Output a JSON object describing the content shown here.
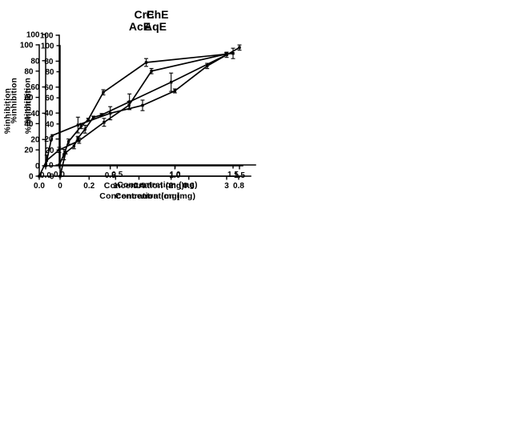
{
  "figure": {
    "background": "#ffffff",
    "ink_color": "#000000",
    "marker_shape": "filled-square",
    "error_bars": "vertical-with-caps"
  },
  "chart_data": [
    {
      "id": "cre",
      "type": "line",
      "title": "CrE",
      "xlabel": "Concentration (mg)",
      "ylabel": "%inhibition",
      "xlim": [
        0,
        1.52
      ],
      "ylim": [
        0,
        100
      ],
      "legend": "none",
      "grid": false,
      "xticks": {
        "values": [
          0,
          0.5,
          1.0,
          1.5
        ],
        "labels": [
          "0.0",
          "0.5",
          "1.0",
          "1.5"
        ]
      },
      "yticks": {
        "values": [
          0,
          20,
          40,
          60,
          80,
          100
        ],
        "labels": [
          "0",
          "20",
          "40",
          "60",
          "80",
          "100"
        ]
      },
      "x": [
        0,
        0.05,
        0.25,
        0.5,
        0.75,
        1.0,
        1.25,
        1.5
      ],
      "y": [
        0,
        23,
        31,
        40,
        46,
        57,
        76,
        90
      ],
      "yerr": [
        0,
        0,
        6,
        5,
        4,
        1.5,
        2,
        2
      ]
    },
    {
      "id": "che",
      "type": "line",
      "title": "ChE",
      "xlabel": "Concentration (mg)",
      "ylabel": "%inhibition",
      "xlim": [
        0,
        1.7
      ],
      "ylim": [
        0,
        100
      ],
      "legend": "none",
      "grid": false,
      "xticks": {
        "values": [
          0,
          0.5,
          1.0,
          1.5
        ],
        "labels": [
          "0.0",
          "0.5",
          "1.0",
          "1.5"
        ]
      },
      "yticks": {
        "values": [
          0,
          20,
          40,
          60,
          80,
          100
        ],
        "labels": [
          "0",
          "20",
          "40",
          "60",
          "80",
          "100"
        ]
      },
      "x": [
        0,
        0.04,
        0.08,
        0.19,
        0.25,
        0.38,
        0.75,
        1.5
      ],
      "y": [
        0,
        8,
        18,
        30,
        35,
        56,
        79,
        86
      ],
      "yerr": [
        0,
        4,
        2,
        2,
        1,
        2,
        3,
        4
      ]
    },
    {
      "id": "ace",
      "type": "line",
      "title": "AcE",
      "xlabel": "Concentration (mg)",
      "ylabel": "%inhibition",
      "xlim": [
        0,
        0.81
      ],
      "ylim": [
        0,
        100
      ],
      "legend": "none",
      "grid": false,
      "xticks": {
        "values": [
          0,
          0.2,
          0.4,
          0.6,
          0.8
        ],
        "labels": [
          "0.0",
          "0.2",
          "0.4",
          "0.6",
          "0.8"
        ]
      },
      "yticks": {
        "values": [
          0,
          20,
          40,
          60,
          80,
          100
        ],
        "labels": [
          "0",
          "20",
          "40",
          "60",
          "80",
          "100"
        ]
      },
      "x": [
        0,
        0.03,
        0.08,
        0.16,
        0.26,
        0.36,
        0.45,
        0.75
      ],
      "y": [
        0,
        12,
        20,
        27,
        41,
        54,
        80,
        93
      ],
      "yerr": [
        0,
        4,
        2,
        2,
        3,
        3,
        2,
        1
      ]
    },
    {
      "id": "aqe",
      "type": "line",
      "title": "AqE",
      "xlabel": "Concentration (mg)",
      "ylabel": "%inhibition",
      "xlim": [
        0,
        3.45
      ],
      "ylim": [
        0,
        100
      ],
      "legend": "none",
      "grid": false,
      "xticks": {
        "values": [
          0,
          1,
          2,
          3
        ],
        "labels": [
          "0",
          "1",
          "2",
          "3"
        ]
      },
      "yticks": {
        "values": [
          0,
          20,
          40,
          60,
          80,
          100
        ],
        "labels": [
          "0",
          "20",
          "40",
          "60",
          "80",
          "100"
        ]
      },
      "x": [
        0,
        0.1,
        0.25,
        0.32,
        0.45,
        0.6,
        0.75,
        1.25,
        2.0,
        3.0
      ],
      "y": [
        0,
        18,
        23,
        29,
        36,
        45,
        47,
        57,
        72,
        93
      ],
      "yerr": [
        0,
        1,
        2,
        1.5,
        3,
        1,
        1,
        6,
        7,
        2
      ]
    }
  ]
}
